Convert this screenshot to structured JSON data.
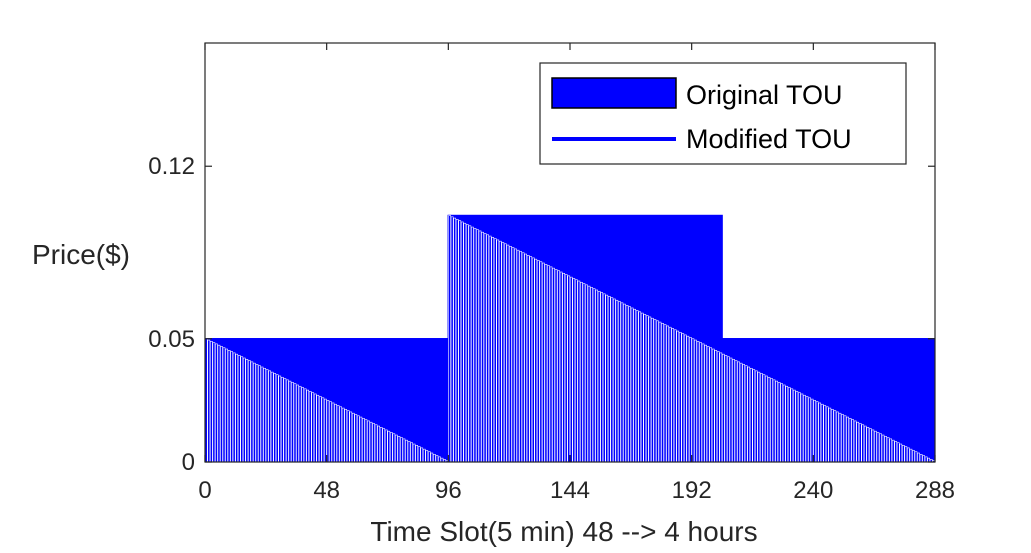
{
  "chart_data": {
    "type": "bar",
    "title": "",
    "xlabel": "Time Slot(5 min) 48 --> 4 hours",
    "ylabel": "Price($)",
    "xlim": [
      0,
      288
    ],
    "ylim": [
      0,
      0.17
    ],
    "x_ticks": [
      0,
      48,
      96,
      144,
      192,
      240,
      288
    ],
    "x_tick_labels": [
      "0",
      "48",
      "96",
      "144",
      "192",
      "240",
      "288"
    ],
    "y_ticks": [
      0,
      0.05,
      0.12
    ],
    "y_tick_labels": [
      "0",
      "0.05",
      "0.12"
    ],
    "grid": false,
    "legend_position": "top-right",
    "colors": {
      "series": "#0000ff",
      "axis": "#262626",
      "bar_edge": "#ffffff"
    },
    "series": [
      {
        "name": "Original TOU",
        "style": "bar",
        "segments": [
          {
            "x_start": 0,
            "x_end": 96,
            "value": 0.05
          },
          {
            "x_start": 96,
            "x_end": 204,
            "value": 0.1
          },
          {
            "x_start": 204,
            "x_end": 288,
            "value": 0.05
          }
        ]
      },
      {
        "name": "Modified TOU",
        "style": "sawtooth-bar",
        "segments": [
          {
            "x_start": 0,
            "x_end": 96,
            "start_value": 0.05,
            "end_value": 0.0
          },
          {
            "x_start": 96,
            "x_end": 288,
            "start_value": 0.1,
            "end_value": 0.0
          }
        ]
      }
    ]
  }
}
